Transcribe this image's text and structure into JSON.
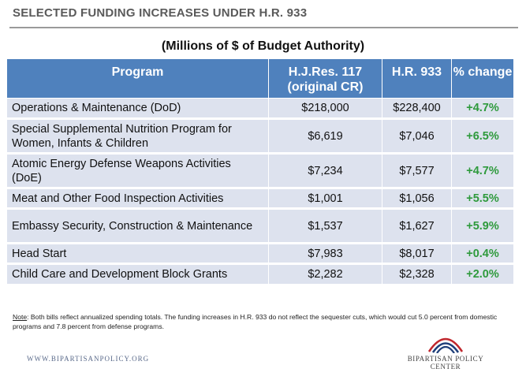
{
  "header": {
    "title": "SELECTED FUNDING INCREASES UNDER H.R. 933",
    "subtitle": "(Millions of $ of Budget Authority)"
  },
  "table": {
    "columns": [
      "Program",
      "H.J.Res. 117 (original CR)",
      "H.R. 933",
      "% change"
    ],
    "column_lines": {
      "hjres_line1": "H.J.Res. 117",
      "hjres_line2": "(original CR)"
    },
    "rows": [
      {
        "program": "Operations & Maintenance (DoD)",
        "hjres": "$218,000",
        "hr933": "$228,400",
        "change": "+4.7%"
      },
      {
        "program": "Special Supplemental Nutrition Program for Women, Infants & Children",
        "hjres": "$6,619",
        "hr933": "$7,046",
        "change": "+6.5%"
      },
      {
        "program": "Atomic Energy Defense Weapons Activities (DoE)",
        "hjres": "$7,234",
        "hr933": "$7,577",
        "change": "+4.7%"
      },
      {
        "program": "Meat and Other Food Inspection Activities",
        "hjres": "$1,001",
        "hr933": "$1,056",
        "change": "+5.5%"
      },
      {
        "program": "Embassy Security, Construction & Maintenance",
        "hjres": "$1,537",
        "hr933": "$1,627",
        "change": "+5.9%"
      },
      {
        "program": "Head Start",
        "hjres": "$7,983",
        "hr933": "$8,017",
        "change": "+0.4%"
      },
      {
        "program": "Child Care and Development Block Grants",
        "hjres": "$2,282",
        "hr933": "$2,328",
        "change": "+2.0%"
      }
    ]
  },
  "note": {
    "label": "Note",
    "text": ": Both bills reflect annualized spending totals. The funding increases in H.R. 933 do not reflect the sequester cuts, which would cut 5.0 percent from domestic programs and 7.8 percent from defense programs."
  },
  "footer": {
    "url": "WWW.BIPARTISANPOLICY.ORG",
    "logo_text": "BIPARTISAN POLICY CENTER",
    "logo_icon": "arc-logo-icon"
  },
  "colors": {
    "header_bg": "#4f81bd",
    "row_bg": "#dde2ee",
    "positive_change": "#2e9a3c",
    "logo_red": "#c0272d",
    "logo_blue": "#1f3f7a"
  }
}
